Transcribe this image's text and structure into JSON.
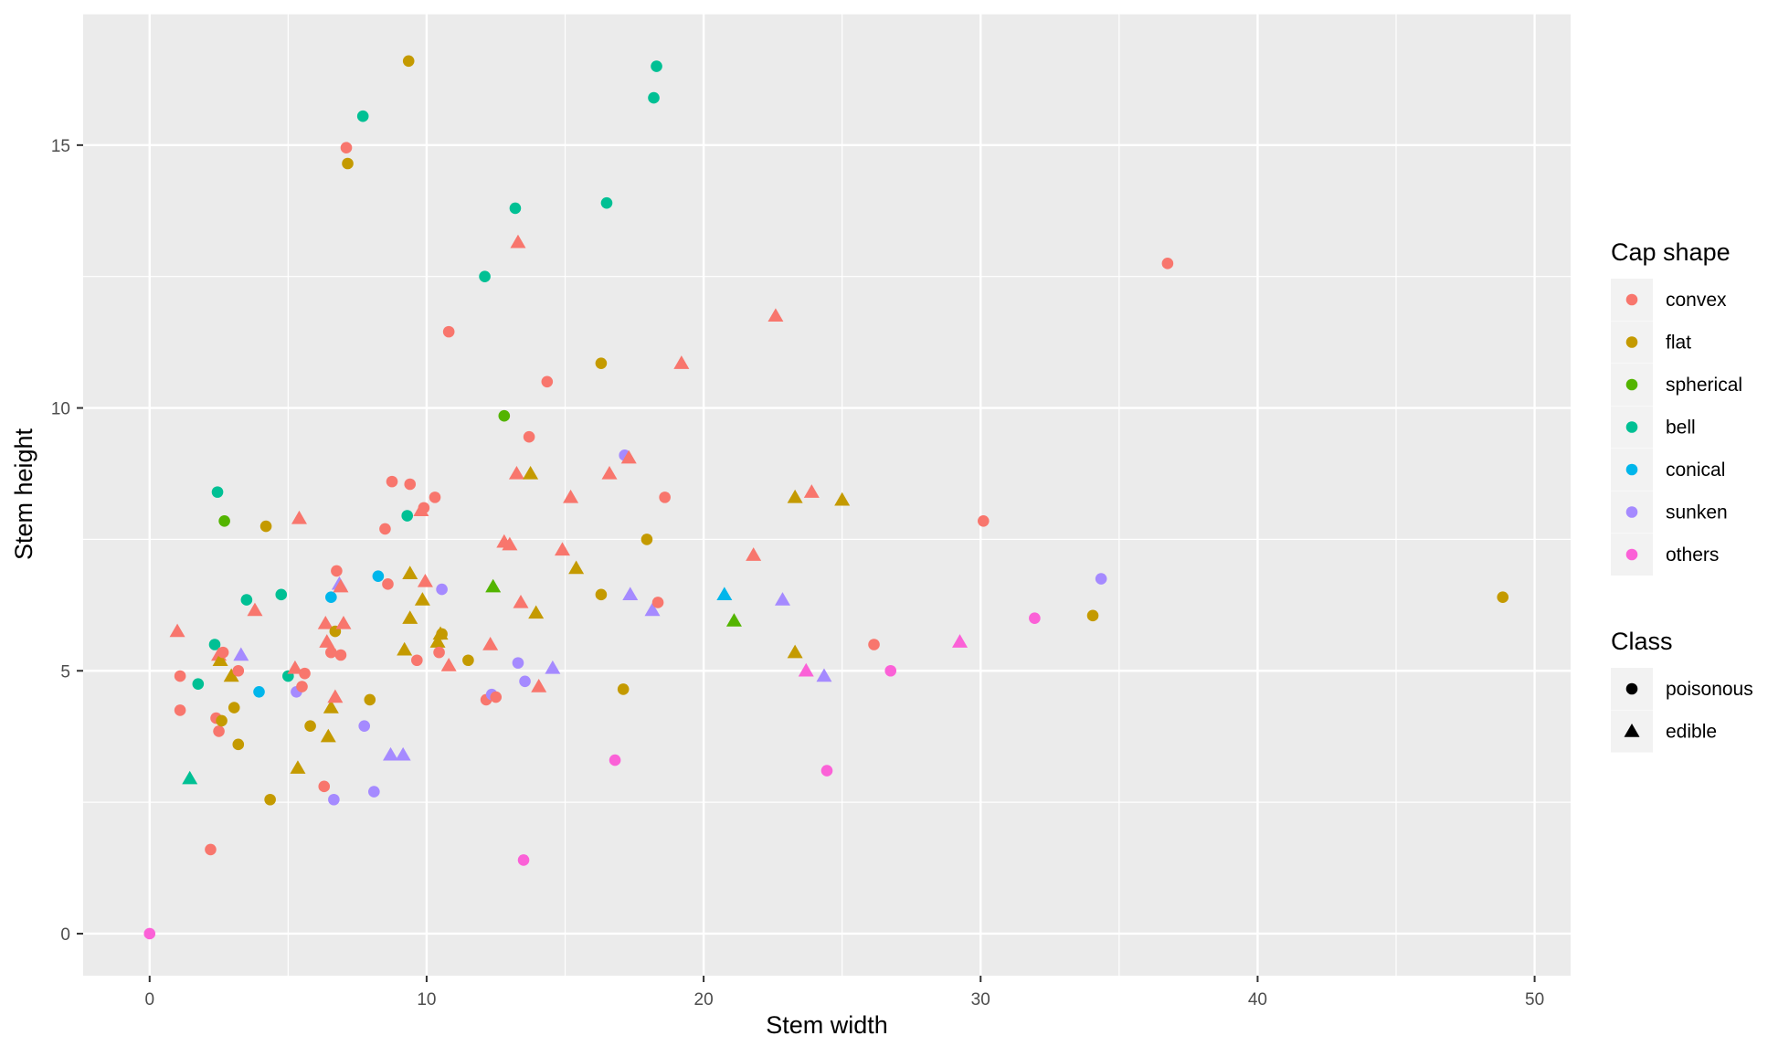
{
  "chart_data": {
    "type": "scatter",
    "title": "",
    "xlabel": "Stem width",
    "ylabel": "Stem height",
    "xlim": [
      -2.4,
      51.3
    ],
    "ylim": [
      -0.8,
      17.5
    ],
    "x_ticks": [
      0,
      10,
      20,
      30,
      40,
      50
    ],
    "y_ticks": [
      0,
      5,
      10,
      15
    ],
    "grid": true,
    "legend_position": "right",
    "legends": {
      "color": {
        "title": "Cap shape",
        "items": [
          {
            "label": "convex",
            "color": "#F8766D"
          },
          {
            "label": "flat",
            "color": "#C49A00"
          },
          {
            "label": "spherical",
            "color": "#53B400"
          },
          {
            "label": "bell",
            "color": "#00C094"
          },
          {
            "label": "conical",
            "color": "#00B6EB"
          },
          {
            "label": "sunken",
            "color": "#A58AFF"
          },
          {
            "label": "others",
            "color": "#FB61D7"
          }
        ]
      },
      "shape": {
        "title": "Class",
        "items": [
          {
            "label": "poisonous",
            "shape": "circle"
          },
          {
            "label": "edible",
            "shape": "triangle"
          }
        ]
      }
    },
    "points": [
      {
        "x": 0.0,
        "y": 0.0,
        "cap": "others",
        "class": "poisonous"
      },
      {
        "x": 1.0,
        "y": 5.75,
        "cap": "convex",
        "class": "edible"
      },
      {
        "x": 1.1,
        "y": 4.9,
        "cap": "convex",
        "class": "poisonous"
      },
      {
        "x": 1.1,
        "y": 4.25,
        "cap": "convex",
        "class": "poisonous"
      },
      {
        "x": 1.45,
        "y": 2.95,
        "cap": "bell",
        "class": "edible"
      },
      {
        "x": 1.75,
        "y": 4.75,
        "cap": "bell",
        "class": "poisonous"
      },
      {
        "x": 2.2,
        "y": 1.6,
        "cap": "convex",
        "class": "poisonous"
      },
      {
        "x": 2.35,
        "y": 5.5,
        "cap": "bell",
        "class": "poisonous"
      },
      {
        "x": 2.4,
        "y": 4.1,
        "cap": "convex",
        "class": "poisonous"
      },
      {
        "x": 2.45,
        "y": 8.4,
        "cap": "bell",
        "class": "poisonous"
      },
      {
        "x": 2.5,
        "y": 3.85,
        "cap": "convex",
        "class": "poisonous"
      },
      {
        "x": 2.5,
        "y": 5.3,
        "cap": "convex",
        "class": "edible"
      },
      {
        "x": 2.55,
        "y": 5.2,
        "cap": "flat",
        "class": "edible"
      },
      {
        "x": 2.6,
        "y": 4.05,
        "cap": "flat",
        "class": "poisonous"
      },
      {
        "x": 2.65,
        "y": 5.35,
        "cap": "convex",
        "class": "poisonous"
      },
      {
        "x": 2.7,
        "y": 7.85,
        "cap": "spherical",
        "class": "poisonous"
      },
      {
        "x": 2.95,
        "y": 4.9,
        "cap": "flat",
        "class": "edible"
      },
      {
        "x": 3.05,
        "y": 4.3,
        "cap": "flat",
        "class": "poisonous"
      },
      {
        "x": 3.2,
        "y": 5.0,
        "cap": "convex",
        "class": "poisonous"
      },
      {
        "x": 3.2,
        "y": 3.6,
        "cap": "flat",
        "class": "poisonous"
      },
      {
        "x": 3.3,
        "y": 5.3,
        "cap": "sunken",
        "class": "edible"
      },
      {
        "x": 3.5,
        "y": 6.35,
        "cap": "bell",
        "class": "poisonous"
      },
      {
        "x": 3.8,
        "y": 6.15,
        "cap": "convex",
        "class": "edible"
      },
      {
        "x": 3.95,
        "y": 4.6,
        "cap": "conical",
        "class": "poisonous"
      },
      {
        "x": 4.2,
        "y": 7.75,
        "cap": "flat",
        "class": "poisonous"
      },
      {
        "x": 4.35,
        "y": 2.55,
        "cap": "flat",
        "class": "poisonous"
      },
      {
        "x": 4.75,
        "y": 6.45,
        "cap": "bell",
        "class": "poisonous"
      },
      {
        "x": 5.0,
        "y": 4.9,
        "cap": "bell",
        "class": "poisonous"
      },
      {
        "x": 5.25,
        "y": 5.05,
        "cap": "convex",
        "class": "edible"
      },
      {
        "x": 5.3,
        "y": 4.6,
        "cap": "sunken",
        "class": "poisonous"
      },
      {
        "x": 5.35,
        "y": 3.15,
        "cap": "flat",
        "class": "edible"
      },
      {
        "x": 5.4,
        "y": 7.9,
        "cap": "convex",
        "class": "edible"
      },
      {
        "x": 5.5,
        "y": 4.7,
        "cap": "convex",
        "class": "poisonous"
      },
      {
        "x": 5.6,
        "y": 4.95,
        "cap": "convex",
        "class": "poisonous"
      },
      {
        "x": 5.8,
        "y": 3.95,
        "cap": "flat",
        "class": "poisonous"
      },
      {
        "x": 6.3,
        "y": 2.8,
        "cap": "convex",
        "class": "poisonous"
      },
      {
        "x": 6.35,
        "y": 5.9,
        "cap": "convex",
        "class": "edible"
      },
      {
        "x": 6.4,
        "y": 5.55,
        "cap": "convex",
        "class": "edible"
      },
      {
        "x": 6.45,
        "y": 3.75,
        "cap": "flat",
        "class": "edible"
      },
      {
        "x": 6.55,
        "y": 6.4,
        "cap": "conical",
        "class": "poisonous"
      },
      {
        "x": 6.55,
        "y": 5.35,
        "cap": "convex",
        "class": "poisonous"
      },
      {
        "x": 6.55,
        "y": 4.3,
        "cap": "flat",
        "class": "edible"
      },
      {
        "x": 6.65,
        "y": 2.55,
        "cap": "sunken",
        "class": "poisonous"
      },
      {
        "x": 6.7,
        "y": 4.5,
        "cap": "convex",
        "class": "edible"
      },
      {
        "x": 6.7,
        "y": 5.75,
        "cap": "flat",
        "class": "poisonous"
      },
      {
        "x": 6.75,
        "y": 6.9,
        "cap": "convex",
        "class": "poisonous"
      },
      {
        "x": 6.85,
        "y": 6.65,
        "cap": "sunken",
        "class": "edible"
      },
      {
        "x": 6.9,
        "y": 6.6,
        "cap": "convex",
        "class": "edible"
      },
      {
        "x": 6.9,
        "y": 5.3,
        "cap": "convex",
        "class": "poisonous"
      },
      {
        "x": 7.0,
        "y": 5.9,
        "cap": "convex",
        "class": "edible"
      },
      {
        "x": 7.1,
        "y": 14.95,
        "cap": "convex",
        "class": "poisonous"
      },
      {
        "x": 7.15,
        "y": 14.65,
        "cap": "flat",
        "class": "poisonous"
      },
      {
        "x": 7.7,
        "y": 15.55,
        "cap": "bell",
        "class": "poisonous"
      },
      {
        "x": 7.75,
        "y": 3.95,
        "cap": "sunken",
        "class": "poisonous"
      },
      {
        "x": 7.95,
        "y": 4.45,
        "cap": "flat",
        "class": "poisonous"
      },
      {
        "x": 8.1,
        "y": 2.7,
        "cap": "sunken",
        "class": "poisonous"
      },
      {
        "x": 8.25,
        "y": 6.8,
        "cap": "conical",
        "class": "poisonous"
      },
      {
        "x": 8.5,
        "y": 7.7,
        "cap": "convex",
        "class": "poisonous"
      },
      {
        "x": 8.6,
        "y": 6.65,
        "cap": "convex",
        "class": "poisonous"
      },
      {
        "x": 8.7,
        "y": 3.4,
        "cap": "sunken",
        "class": "edible"
      },
      {
        "x": 8.75,
        "y": 8.6,
        "cap": "convex",
        "class": "poisonous"
      },
      {
        "x": 9.15,
        "y": 3.4,
        "cap": "sunken",
        "class": "edible"
      },
      {
        "x": 9.2,
        "y": 5.4,
        "cap": "flat",
        "class": "edible"
      },
      {
        "x": 9.3,
        "y": 7.95,
        "cap": "bell",
        "class": "poisonous"
      },
      {
        "x": 9.35,
        "y": 16.6,
        "cap": "flat",
        "class": "poisonous"
      },
      {
        "x": 9.4,
        "y": 6.85,
        "cap": "flat",
        "class": "edible"
      },
      {
        "x": 9.4,
        "y": 8.55,
        "cap": "convex",
        "class": "poisonous"
      },
      {
        "x": 9.4,
        "y": 6.0,
        "cap": "flat",
        "class": "edible"
      },
      {
        "x": 9.65,
        "y": 5.2,
        "cap": "convex",
        "class": "poisonous"
      },
      {
        "x": 9.8,
        "y": 8.05,
        "cap": "convex",
        "class": "edible"
      },
      {
        "x": 9.85,
        "y": 6.35,
        "cap": "flat",
        "class": "edible"
      },
      {
        "x": 9.9,
        "y": 8.1,
        "cap": "convex",
        "class": "poisonous"
      },
      {
        "x": 9.95,
        "y": 6.7,
        "cap": "convex",
        "class": "edible"
      },
      {
        "x": 10.3,
        "y": 8.3,
        "cap": "convex",
        "class": "poisonous"
      },
      {
        "x": 10.4,
        "y": 5.55,
        "cap": "flat",
        "class": "edible"
      },
      {
        "x": 10.45,
        "y": 5.35,
        "cap": "convex",
        "class": "poisonous"
      },
      {
        "x": 10.5,
        "y": 5.7,
        "cap": "flat",
        "class": "edible"
      },
      {
        "x": 10.55,
        "y": 6.55,
        "cap": "sunken",
        "class": "poisonous"
      },
      {
        "x": 10.55,
        "y": 5.7,
        "cap": "flat",
        "class": "poisonous"
      },
      {
        "x": 10.8,
        "y": 11.45,
        "cap": "convex",
        "class": "poisonous"
      },
      {
        "x": 10.8,
        "y": 5.1,
        "cap": "convex",
        "class": "edible"
      },
      {
        "x": 11.5,
        "y": 5.2,
        "cap": "flat",
        "class": "poisonous"
      },
      {
        "x": 12.1,
        "y": 12.5,
        "cap": "bell",
        "class": "poisonous"
      },
      {
        "x": 12.15,
        "y": 4.45,
        "cap": "convex",
        "class": "poisonous"
      },
      {
        "x": 12.3,
        "y": 5.5,
        "cap": "convex",
        "class": "edible"
      },
      {
        "x": 12.35,
        "y": 4.55,
        "cap": "sunken",
        "class": "poisonous"
      },
      {
        "x": 12.4,
        "y": 6.6,
        "cap": "spherical",
        "class": "edible"
      },
      {
        "x": 12.5,
        "y": 4.5,
        "cap": "convex",
        "class": "poisonous"
      },
      {
        "x": 12.8,
        "y": 7.45,
        "cap": "convex",
        "class": "edible"
      },
      {
        "x": 12.8,
        "y": 9.85,
        "cap": "spherical",
        "class": "poisonous"
      },
      {
        "x": 13.0,
        "y": 7.4,
        "cap": "convex",
        "class": "edible"
      },
      {
        "x": 13.2,
        "y": 13.8,
        "cap": "bell",
        "class": "poisonous"
      },
      {
        "x": 13.25,
        "y": 8.75,
        "cap": "convex",
        "class": "edible"
      },
      {
        "x": 13.3,
        "y": 13.15,
        "cap": "convex",
        "class": "edible"
      },
      {
        "x": 13.3,
        "y": 5.15,
        "cap": "sunken",
        "class": "poisonous"
      },
      {
        "x": 13.4,
        "y": 6.3,
        "cap": "convex",
        "class": "edible"
      },
      {
        "x": 13.5,
        "y": 1.4,
        "cap": "others",
        "class": "poisonous"
      },
      {
        "x": 13.55,
        "y": 4.8,
        "cap": "sunken",
        "class": "poisonous"
      },
      {
        "x": 13.7,
        "y": 9.45,
        "cap": "convex",
        "class": "poisonous"
      },
      {
        "x": 13.75,
        "y": 8.75,
        "cap": "flat",
        "class": "edible"
      },
      {
        "x": 13.95,
        "y": 6.1,
        "cap": "flat",
        "class": "edible"
      },
      {
        "x": 14.05,
        "y": 4.7,
        "cap": "convex",
        "class": "edible"
      },
      {
        "x": 14.35,
        "y": 10.5,
        "cap": "convex",
        "class": "poisonous"
      },
      {
        "x": 14.55,
        "y": 5.05,
        "cap": "sunken",
        "class": "edible"
      },
      {
        "x": 14.9,
        "y": 7.3,
        "cap": "convex",
        "class": "edible"
      },
      {
        "x": 15.2,
        "y": 8.3,
        "cap": "convex",
        "class": "edible"
      },
      {
        "x": 15.4,
        "y": 6.95,
        "cap": "flat",
        "class": "edible"
      },
      {
        "x": 16.3,
        "y": 10.85,
        "cap": "flat",
        "class": "poisonous"
      },
      {
        "x": 16.3,
        "y": 6.45,
        "cap": "flat",
        "class": "poisonous"
      },
      {
        "x": 16.5,
        "y": 13.9,
        "cap": "bell",
        "class": "poisonous"
      },
      {
        "x": 16.6,
        "y": 8.75,
        "cap": "convex",
        "class": "edible"
      },
      {
        "x": 16.8,
        "y": 3.3,
        "cap": "others",
        "class": "poisonous"
      },
      {
        "x": 17.1,
        "y": 4.65,
        "cap": "flat",
        "class": "poisonous"
      },
      {
        "x": 17.15,
        "y": 9.1,
        "cap": "sunken",
        "class": "poisonous"
      },
      {
        "x": 17.3,
        "y": 9.05,
        "cap": "convex",
        "class": "edible"
      },
      {
        "x": 17.35,
        "y": 6.45,
        "cap": "sunken",
        "class": "edible"
      },
      {
        "x": 17.95,
        "y": 7.5,
        "cap": "flat",
        "class": "poisonous"
      },
      {
        "x": 18.15,
        "y": 6.15,
        "cap": "sunken",
        "class": "edible"
      },
      {
        "x": 18.2,
        "y": 15.9,
        "cap": "bell",
        "class": "poisonous"
      },
      {
        "x": 18.3,
        "y": 16.5,
        "cap": "bell",
        "class": "poisonous"
      },
      {
        "x": 18.35,
        "y": 6.3,
        "cap": "convex",
        "class": "poisonous"
      },
      {
        "x": 18.6,
        "y": 8.3,
        "cap": "convex",
        "class": "poisonous"
      },
      {
        "x": 19.2,
        "y": 10.85,
        "cap": "convex",
        "class": "edible"
      },
      {
        "x": 20.75,
        "y": 6.45,
        "cap": "conical",
        "class": "edible"
      },
      {
        "x": 21.1,
        "y": 5.95,
        "cap": "spherical",
        "class": "edible"
      },
      {
        "x": 21.8,
        "y": 7.2,
        "cap": "convex",
        "class": "edible"
      },
      {
        "x": 22.6,
        "y": 11.75,
        "cap": "convex",
        "class": "edible"
      },
      {
        "x": 22.85,
        "y": 6.35,
        "cap": "sunken",
        "class": "edible"
      },
      {
        "x": 23.3,
        "y": 5.35,
        "cap": "flat",
        "class": "edible"
      },
      {
        "x": 23.3,
        "y": 8.3,
        "cap": "flat",
        "class": "edible"
      },
      {
        "x": 23.7,
        "y": 5.0,
        "cap": "others",
        "class": "edible"
      },
      {
        "x": 23.9,
        "y": 8.4,
        "cap": "convex",
        "class": "edible"
      },
      {
        "x": 24.35,
        "y": 4.9,
        "cap": "sunken",
        "class": "edible"
      },
      {
        "x": 24.45,
        "y": 3.1,
        "cap": "others",
        "class": "poisonous"
      },
      {
        "x": 25.0,
        "y": 8.25,
        "cap": "flat",
        "class": "edible"
      },
      {
        "x": 26.15,
        "y": 5.5,
        "cap": "convex",
        "class": "poisonous"
      },
      {
        "x": 26.75,
        "y": 5.0,
        "cap": "others",
        "class": "poisonous"
      },
      {
        "x": 29.25,
        "y": 5.55,
        "cap": "others",
        "class": "edible"
      },
      {
        "x": 30.1,
        "y": 7.85,
        "cap": "convex",
        "class": "poisonous"
      },
      {
        "x": 31.95,
        "y": 6.0,
        "cap": "others",
        "class": "poisonous"
      },
      {
        "x": 34.05,
        "y": 6.05,
        "cap": "flat",
        "class": "poisonous"
      },
      {
        "x": 34.35,
        "y": 6.75,
        "cap": "sunken",
        "class": "poisonous"
      },
      {
        "x": 36.75,
        "y": 12.75,
        "cap": "convex",
        "class": "poisonous"
      },
      {
        "x": 48.85,
        "y": 6.4,
        "cap": "flat",
        "class": "poisonous"
      }
    ]
  }
}
